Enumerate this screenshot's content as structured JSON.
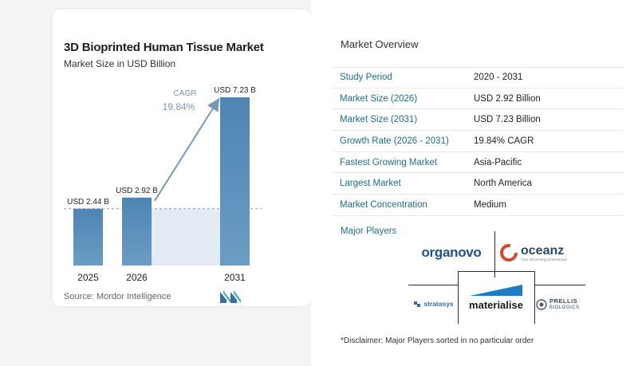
{
  "chart_data": {
    "type": "bar",
    "title": "3D Bioprinted Human Tissue Market",
    "subtitle": "Market Size in USD Billion",
    "categories": [
      "2025",
      "2026",
      "2031"
    ],
    "values": [
      2.44,
      2.92,
      7.23
    ],
    "value_labels": [
      "USD 2.44 B",
      "USD 2.92 B",
      "USD 7.23 B"
    ],
    "cagr_label": "CAGR",
    "cagr_value": "19.84%",
    "ylim": [
      0,
      7.23
    ],
    "colors": {
      "bar": "#6b9cc4",
      "bar_dark": "#4f85b3",
      "shade": "#e3ecf5",
      "arrow": "#7a98b5",
      "dashed": "#8aa4c0"
    }
  },
  "source": "Source:  Mordor Intelligence",
  "overview": {
    "title": "Market Overview",
    "rows": [
      {
        "key": "Study Period",
        "value": "2020 - 2031"
      },
      {
        "key": "Market Size (2026)",
        "value": "USD 2.92 Billion"
      },
      {
        "key": "Market Size (2031)",
        "value": "USD 7.23 Billion"
      },
      {
        "key": "Growth Rate (2026 - 2031)",
        "value": "19.84% CAGR"
      },
      {
        "key": "Fastest Growing Market",
        "value": "Asia-Pacific"
      },
      {
        "key": "Largest Market",
        "value": "North America"
      },
      {
        "key": "Market Concentration",
        "value": "Medium"
      }
    ]
  },
  "players": {
    "title": "Major Players",
    "organovo": "organovo",
    "oceanz": "oceanz",
    "oceanz_tag": "Your 3D printing professional",
    "stratasys": "stratasys",
    "materialise": "materialise",
    "prellis_1": "PRELLIS",
    "prellis_2": "BIOLOGICS"
  },
  "disclaimer": "*Disclaimer: Major Players sorted in no particular order"
}
